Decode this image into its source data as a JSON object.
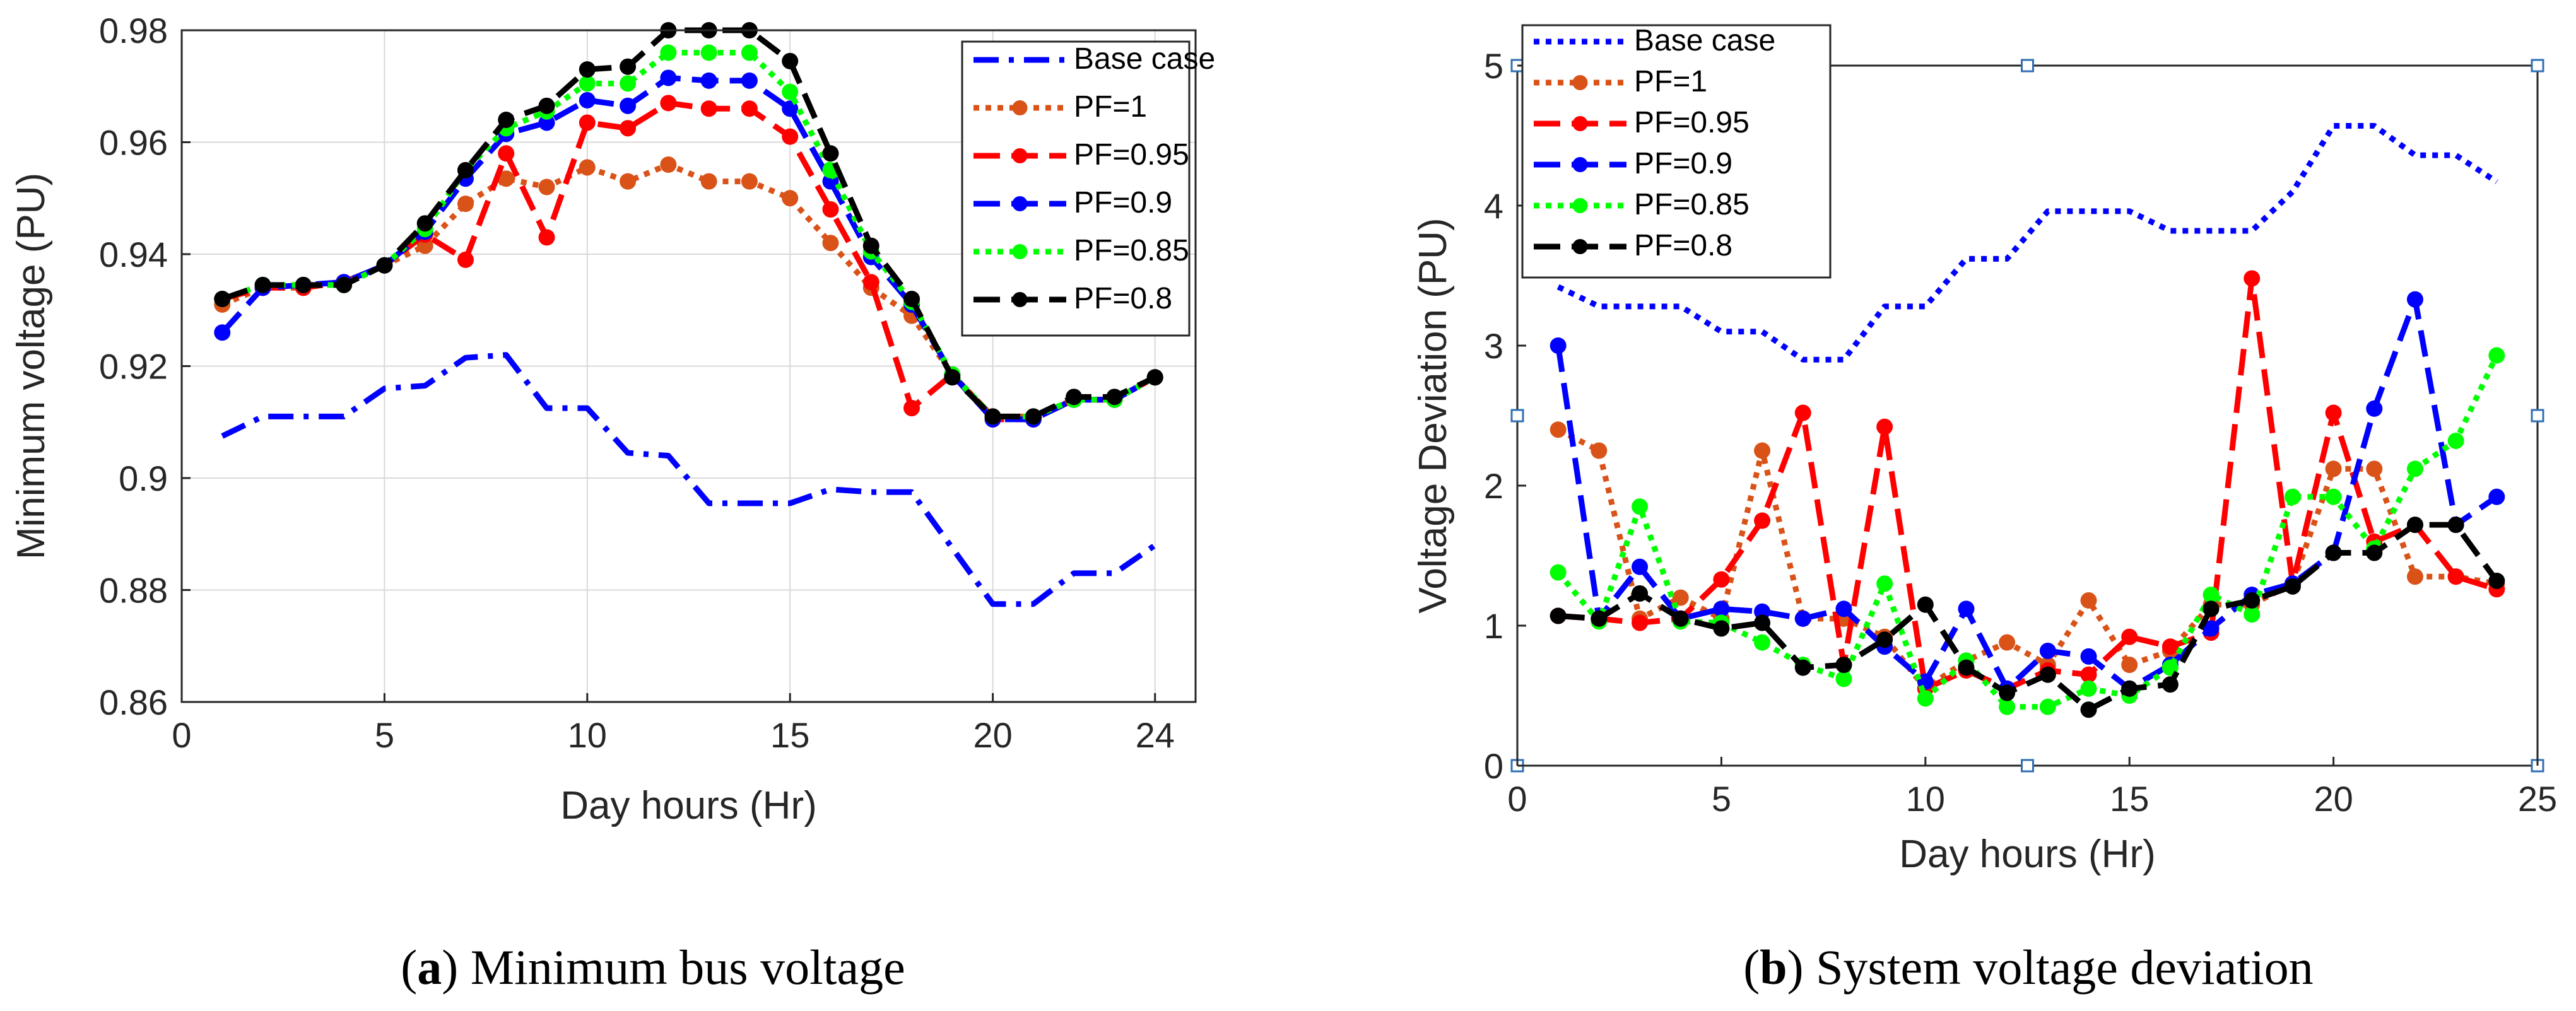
{
  "chart_data": [
    {
      "type": "line",
      "id": "a",
      "xlabel": "Day hours (Hr)",
      "ylabel": "Minimum voltage (PU)",
      "xlim": [
        0,
        25
      ],
      "ylim": [
        0.86,
        0.98
      ],
      "xticks": [
        0,
        5,
        10,
        15,
        20,
        24
      ],
      "xtick_labels": [
        "0",
        "5",
        "10",
        "15",
        "20",
        "24"
      ],
      "yticks": [
        0.86,
        0.88,
        0.9,
        0.92,
        0.94,
        0.96,
        0.98
      ],
      "ytick_labels": [
        "0.86",
        "0.88",
        "0.9",
        "0.92",
        "0.94",
        "0.96",
        "0.98"
      ],
      "grid": true,
      "legend_position": "top-right",
      "caption_prefix": "(",
      "caption_letter": "a",
      "caption_text": ") Minimum bus voltage",
      "x": [
        1,
        2,
        3,
        4,
        5,
        6,
        7,
        8,
        9,
        10,
        11,
        12,
        13,
        14,
        15,
        16,
        17,
        18,
        19,
        20,
        21,
        22,
        23,
        24
      ],
      "series": [
        {
          "name": "Base case",
          "color": "#0000ff",
          "dash": "dashdot",
          "markers": false,
          "values": [
            0.9075,
            0.911,
            0.911,
            0.911,
            0.916,
            0.9165,
            0.9215,
            0.922,
            0.9125,
            0.9125,
            0.9045,
            0.904,
            0.8955,
            0.8955,
            0.8955,
            0.898,
            0.8975,
            0.8975,
            0.8875,
            0.8775,
            0.8775,
            0.883,
            0.883,
            0.888
          ]
        },
        {
          "name": "PF=1",
          "color": "#d95319",
          "dash": "dotted",
          "markers": true,
          "values": [
            0.931,
            0.934,
            0.934,
            0.935,
            0.938,
            0.9415,
            0.949,
            0.9535,
            0.952,
            0.9555,
            0.953,
            0.956,
            0.953,
            0.953,
            0.95,
            0.942,
            0.934,
            0.929,
            0.9185,
            0.911,
            0.911,
            0.914,
            0.914,
            0.918
          ]
        },
        {
          "name": "PF=0.95",
          "color": "#ff0000",
          "dash": "dashed",
          "markers": true,
          "values": [
            0.932,
            0.934,
            0.934,
            0.935,
            0.938,
            0.9435,
            0.939,
            0.958,
            0.943,
            0.9635,
            0.9625,
            0.967,
            0.966,
            0.966,
            0.961,
            0.948,
            0.935,
            0.9125,
            0.9185,
            0.9105,
            0.9105,
            0.914,
            0.914,
            0.918
          ]
        },
        {
          "name": "PF=0.9",
          "color": "#0000ff",
          "dash": "dashed",
          "markers": true,
          "values": [
            0.926,
            0.934,
            0.9345,
            0.935,
            0.938,
            0.944,
            0.9535,
            0.9615,
            0.9635,
            0.9675,
            0.9665,
            0.9715,
            0.971,
            0.971,
            0.966,
            0.953,
            0.9395,
            0.931,
            0.9185,
            0.9105,
            0.9105,
            0.914,
            0.914,
            0.918
          ]
        },
        {
          "name": "PF=0.85",
          "color": "#00ff00",
          "dash": "dotted",
          "markers": true,
          "values": [
            0.932,
            0.9345,
            0.9345,
            0.9345,
            0.938,
            0.9445,
            0.955,
            0.9625,
            0.9655,
            0.9705,
            0.9705,
            0.976,
            0.976,
            0.976,
            0.969,
            0.955,
            0.9405,
            0.9315,
            0.9185,
            0.911,
            0.911,
            0.914,
            0.914,
            0.918
          ]
        },
        {
          "name": "PF=0.8",
          "color": "#000000",
          "dash": "dashed",
          "markers": true,
          "values": [
            0.932,
            0.9345,
            0.9345,
            0.9345,
            0.938,
            0.9455,
            0.955,
            0.964,
            0.9665,
            0.973,
            0.9735,
            0.98,
            0.98,
            0.98,
            0.9745,
            0.958,
            0.9415,
            0.932,
            0.918,
            0.911,
            0.911,
            0.9145,
            0.9145,
            0.918
          ]
        }
      ]
    },
    {
      "type": "line",
      "id": "b",
      "xlabel": "Day hours (Hr)",
      "ylabel": "Voltage Deviation (PU)",
      "xlim": [
        0,
        25
      ],
      "ylim": [
        0,
        5
      ],
      "xticks": [
        0,
        5,
        10,
        15,
        20,
        25
      ],
      "xtick_labels": [
        "0",
        "5",
        "10",
        "15",
        "20",
        "25"
      ],
      "yticks": [
        0,
        1,
        2,
        3,
        4,
        5
      ],
      "ytick_labels": [
        "0",
        "1",
        "2",
        "3",
        "4",
        "5"
      ],
      "grid": false,
      "legend_position": "top-left",
      "caption_prefix": "(",
      "caption_letter": "b",
      "caption_text": ") System voltage deviation",
      "x": [
        1,
        2,
        3,
        4,
        5,
        6,
        7,
        8,
        9,
        10,
        11,
        12,
        13,
        14,
        15,
        16,
        17,
        18,
        19,
        20,
        21,
        22,
        23,
        24
      ],
      "series": [
        {
          "name": "Base case",
          "color": "#0000ff",
          "dash": "dotted",
          "markers": false,
          "values": [
            3.42,
            3.28,
            3.28,
            3.28,
            3.1,
            3.1,
            2.9,
            2.9,
            3.28,
            3.28,
            3.62,
            3.62,
            3.96,
            3.96,
            3.96,
            3.82,
            3.82,
            3.82,
            4.1,
            4.57,
            4.57,
            4.36,
            4.36,
            4.17
          ]
        },
        {
          "name": "PF=1",
          "color": "#d95319",
          "dash": "dotted",
          "markers": true,
          "values": [
            2.4,
            2.25,
            1.05,
            1.2,
            1.05,
            2.25,
            1.05,
            1.05,
            0.92,
            0.55,
            0.75,
            0.88,
            0.72,
            1.18,
            0.72,
            0.82,
            1.15,
            1.15,
            1.3,
            2.12,
            2.12,
            1.35,
            1.35,
            1.3
          ]
        },
        {
          "name": "PF=0.95",
          "color": "#ff0000",
          "dash": "dashed",
          "markers": true,
          "values": [
            1.07,
            1.05,
            1.02,
            1.05,
            1.33,
            1.75,
            2.52,
            0.72,
            2.42,
            0.55,
            0.68,
            0.55,
            0.68,
            0.65,
            0.92,
            0.85,
            0.95,
            3.48,
            1.3,
            2.52,
            1.6,
            1.72,
            1.35,
            1.26
          ]
        },
        {
          "name": "PF=0.9",
          "color": "#0000ff",
          "dash": "dashed",
          "markers": true,
          "values": [
            3.0,
            1.05,
            1.42,
            1.05,
            1.12,
            1.1,
            1.05,
            1.12,
            0.85,
            0.6,
            1.12,
            0.55,
            0.82,
            0.78,
            0.55,
            0.72,
            0.98,
            1.22,
            1.3,
            1.52,
            2.55,
            3.33,
            1.72,
            1.92
          ]
        },
        {
          "name": "PF=0.85",
          "color": "#00ff00",
          "dash": "dotted",
          "markers": true,
          "values": [
            1.38,
            1.03,
            1.85,
            1.03,
            1.02,
            0.88,
            0.72,
            0.62,
            1.3,
            0.48,
            0.75,
            0.42,
            0.42,
            0.55,
            0.5,
            0.7,
            1.22,
            1.08,
            1.92,
            1.92,
            1.55,
            2.12,
            2.32,
            2.93
          ]
        },
        {
          "name": "PF=0.8",
          "color": "#000000",
          "dash": "dashed",
          "markers": true,
          "values": [
            1.07,
            1.05,
            1.23,
            1.05,
            0.98,
            1.02,
            0.7,
            0.72,
            0.9,
            1.15,
            0.7,
            0.52,
            0.65,
            0.4,
            0.55,
            0.58,
            1.12,
            1.18,
            1.28,
            1.52,
            1.52,
            1.72,
            1.72,
            1.32
          ]
        }
      ]
    }
  ]
}
